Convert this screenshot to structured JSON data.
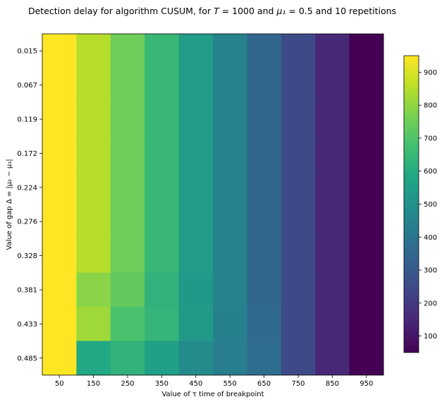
{
  "chart_data": {
    "type": "heatmap",
    "title": "Detection delay for algorithm CUSUM, for T = 1000 and μ₁ = 0.5 and 10 repetitions",
    "xlabel": "Value of τ time of breakpoint",
    "ylabel": "Value of gap Δ = |μ₂ − μ₁|",
    "x": [
      "50",
      "150",
      "250",
      "350",
      "450",
      "550",
      "650",
      "750",
      "850",
      "950"
    ],
    "y": [
      "0.015",
      "0.067",
      "0.119",
      "0.172",
      "0.224",
      "0.276",
      "0.328",
      "0.381",
      "0.433",
      "0.485"
    ],
    "values": [
      [
        950,
        850,
        750,
        650,
        550,
        450,
        350,
        250,
        150,
        50
      ],
      [
        950,
        850,
        750,
        650,
        550,
        450,
        350,
        250,
        150,
        50
      ],
      [
        950,
        850,
        750,
        650,
        550,
        450,
        350,
        250,
        150,
        50
      ],
      [
        950,
        850,
        750,
        650,
        550,
        450,
        350,
        250,
        150,
        50
      ],
      [
        950,
        850,
        750,
        650,
        550,
        450,
        350,
        250,
        150,
        50
      ],
      [
        950,
        850,
        750,
        650,
        550,
        450,
        350,
        250,
        150,
        50
      ],
      [
        950,
        850,
        750,
        650,
        550,
        450,
        350,
        250,
        150,
        50
      ],
      [
        950,
        790,
        730,
        630,
        530,
        450,
        350,
        250,
        150,
        50
      ],
      [
        950,
        820,
        690,
        640,
        540,
        440,
        360,
        250,
        150,
        50
      ],
      [
        950,
        590,
        630,
        560,
        480,
        430,
        370,
        250,
        150,
        50
      ]
    ],
    "colormap": "viridis",
    "vmin": 50,
    "vmax": 950,
    "colorbar_ticks": [
      100,
      200,
      300,
      400,
      500,
      600,
      700,
      800,
      900
    ]
  }
}
